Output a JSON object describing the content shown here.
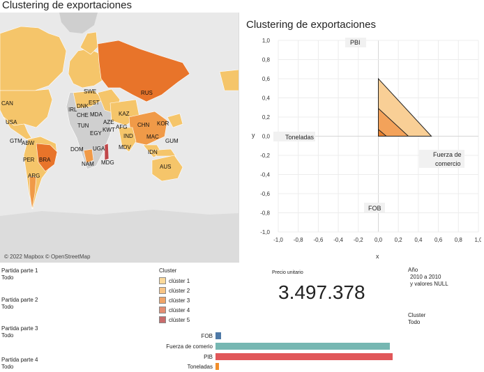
{
  "page": {
    "title": "Clustering de exportaciones"
  },
  "map": {
    "attribution": "© 2022 Mapbox © OpenStreetMap",
    "colors": {
      "land": "#f5c56a",
      "land_grey": "#cfcfcf",
      "ocean": "#e9e9e9",
      "cluster_mid": "#f09a48",
      "cluster_dark": "#e8742a",
      "cluster_red": "#c0474a"
    },
    "labels": {
      "can": "CAN",
      "usa": "USA",
      "gtm": "GTM",
      "abw": "ABW",
      "per": "PER",
      "bra": "BRA",
      "arg": "ARG",
      "swe": "SWE",
      "irl": "IRL",
      "dnk": "DNK",
      "est": "EST",
      "che": "CHE",
      "mda": "MDA",
      "tun": "TUN",
      "egy": "EGY",
      "aze": "AZE",
      "kwt": "KWT",
      "afg": "AFG",
      "kaz": "KAZ",
      "rus": "RUS",
      "chn": "CHN",
      "kor": "KOR",
      "ind": "IND",
      "mac": "MAC",
      "gum": "GUM",
      "dom": "DOM",
      "uga": "UGA",
      "nam": "NAM",
      "mdg": "MDG",
      "mdv": "MDV",
      "idn": "IDN",
      "aus": "AUS"
    }
  },
  "scatter": {
    "title": "Clustering de exportaciones",
    "x_axis_label": "x",
    "y_axis_label": "y",
    "x_ticks": [
      "-1,0",
      "-0,8",
      "-0,6",
      "-0,4",
      "-0,2",
      "0,0",
      "0,2",
      "0,4",
      "0,6",
      "0,8",
      "1,0"
    ],
    "y_ticks": [
      "1,0",
      "0,8",
      "0,6",
      "0,4",
      "0,2",
      "0,0",
      "-0,2",
      "-0,4",
      "-0,6",
      "-0,8",
      "-1,0"
    ],
    "vector_labels": {
      "pbi": "PBI",
      "toneladas": "Toneladas",
      "fuerza_line1": "Fuerza de",
      "fuerza_line2": "comercio",
      "fob": "FOB"
    },
    "colors": {
      "triangle_outer": "#f9cf96",
      "triangle_mid": "#f3a25a",
      "triangle_inner": "#e8812f",
      "label_bg": "#f1f1f1",
      "grid": "#ececec"
    }
  },
  "chart_data": {
    "type": "scatter",
    "title": "Clustering de exportaciones",
    "xlabel": "x",
    "ylabel": "y",
    "xlim": [
      -1.0,
      1.0
    ],
    "ylim": [
      -1.0,
      1.0
    ],
    "series": [
      {
        "name": "clúster 2",
        "points": [
          [
            0.0,
            0.0
          ],
          [
            0.0,
            0.6
          ],
          [
            0.53,
            0.0
          ]
        ]
      },
      {
        "name": "clúster 3",
        "points": [
          [
            0.0,
            0.0
          ],
          [
            0.0,
            0.29
          ],
          [
            0.3,
            0.0
          ]
        ]
      },
      {
        "name": "clúster 4",
        "points": [
          [
            0.0,
            0.0
          ],
          [
            0.0,
            0.07
          ],
          [
            0.08,
            0.0
          ]
        ]
      }
    ],
    "grid": true
  },
  "filters": [
    {
      "label": "Partida parte 1",
      "value": "Todo"
    },
    {
      "label": "Partida parte 2",
      "value": "Todo"
    },
    {
      "label": "Partida parte 3",
      "value": "Todo"
    },
    {
      "label": "Partida parte 4",
      "value": "Todo"
    }
  ],
  "legend": {
    "title": "Cluster",
    "items": [
      {
        "label": "clúster 1",
        "color": "#fbd99a"
      },
      {
        "label": "clúster 2",
        "color": "#f8c485"
      },
      {
        "label": "clúster 3",
        "color": "#f0a468"
      },
      {
        "label": "clúster 4",
        "color": "#e48d72"
      },
      {
        "label": "clúster 5",
        "color": "#c96b6b"
      }
    ]
  },
  "kpi": {
    "label": "Precio unitario",
    "value": "3.497.378"
  },
  "anio": {
    "label": "Año",
    "line1": "2010 a 2010",
    "line2": "y valores NULL"
  },
  "cluster_filter": {
    "label": "Cluster",
    "value": "Todo"
  },
  "bars": {
    "max": 1.0,
    "items": [
      {
        "label": "FOB",
        "value": 0.03,
        "color": "#4e79a7"
      },
      {
        "label": "Fuerza de comerio",
        "value": 0.985,
        "color": "#76b7b2"
      },
      {
        "label": "PIB",
        "value": 1.0,
        "color": "#e15759"
      },
      {
        "label": "Toneladas",
        "value": 0.02,
        "color": "#f28e2b"
      }
    ]
  }
}
